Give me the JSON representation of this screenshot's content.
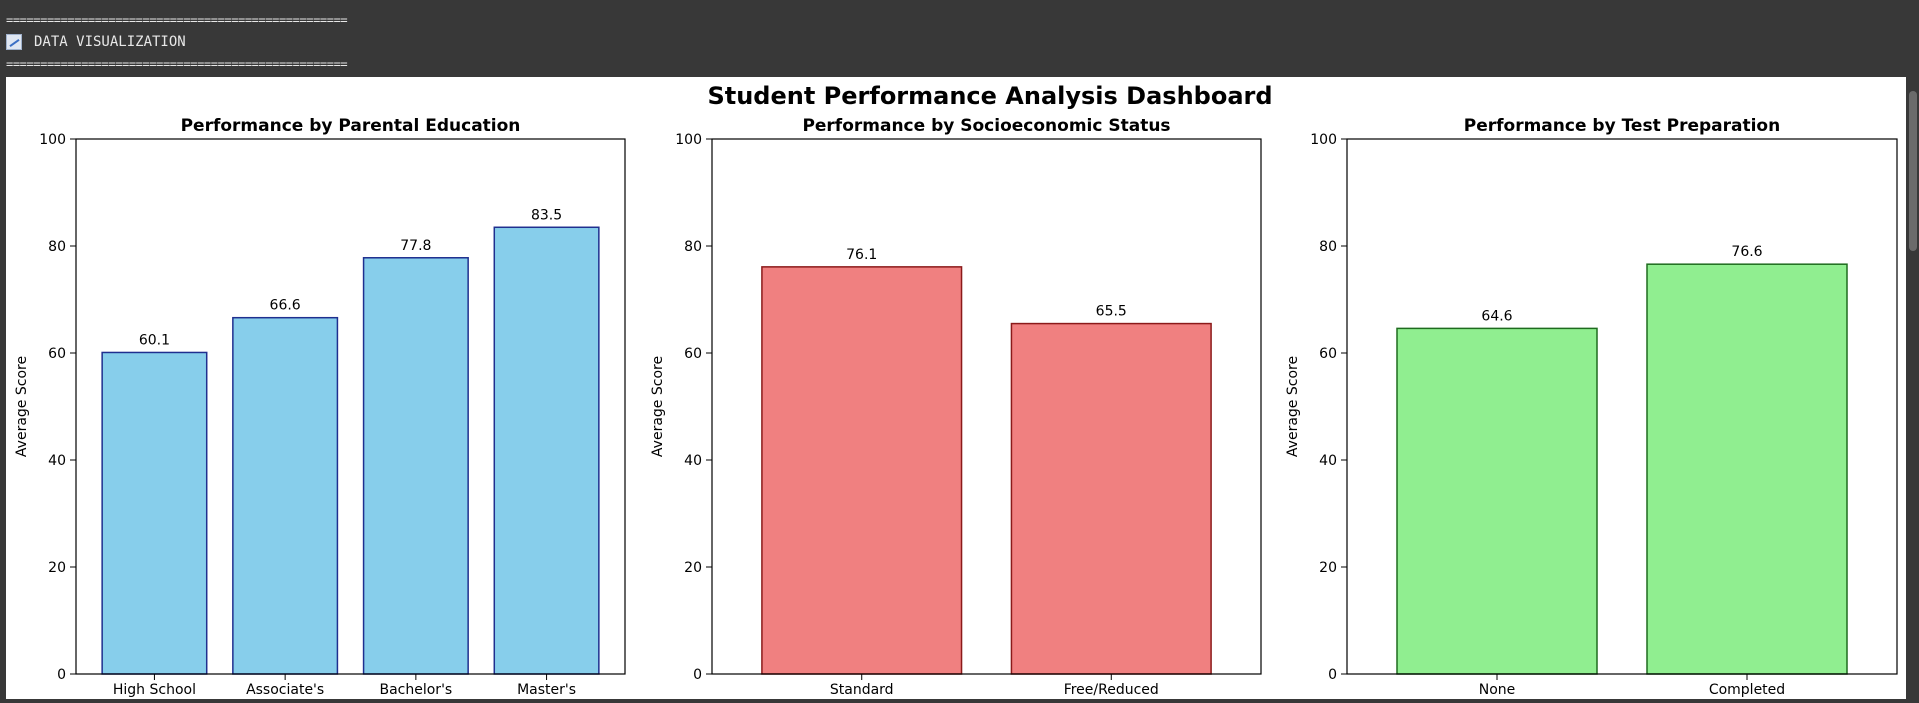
{
  "console": {
    "separator": "==================================================",
    "icon": "chart-icon",
    "title": "DATA VISUALIZATION"
  },
  "figure": {
    "suptitle": "Student Performance Analysis Dashboard"
  },
  "chart_data": [
    {
      "type": "bar",
      "title": "Performance by Parental Education",
      "ylabel": "Average Score",
      "xlabel": "",
      "categories": [
        "High School",
        "Associate's",
        "Bachelor's",
        "Master's"
      ],
      "values": [
        60.1,
        66.6,
        77.8,
        83.5
      ],
      "value_labels": [
        "60.1",
        "66.6",
        "77.8",
        "83.5"
      ],
      "ylim": [
        0,
        100
      ],
      "yticks": [
        "0",
        "20",
        "40",
        "60",
        "80",
        "100"
      ],
      "bar_color": "#87ceeb",
      "edge_color": "#1f2f8f",
      "grid": false
    },
    {
      "type": "bar",
      "title": "Performance by Socioeconomic Status",
      "ylabel": "Average Score",
      "xlabel": "",
      "categories": [
        "Standard",
        "Free/Reduced"
      ],
      "values": [
        76.1,
        65.5
      ],
      "value_labels": [
        "76.1",
        "65.5"
      ],
      "ylim": [
        0,
        100
      ],
      "yticks": [
        "0",
        "20",
        "40",
        "60",
        "80",
        "100"
      ],
      "bar_color": "#f08080",
      "edge_color": "#8b1a1a",
      "grid": false
    },
    {
      "type": "bar",
      "title": "Performance by Test Preparation",
      "ylabel": "Average Score",
      "xlabel": "",
      "categories": [
        "None",
        "Completed"
      ],
      "values": [
        64.6,
        76.6
      ],
      "value_labels": [
        "64.6",
        "76.6"
      ],
      "ylim": [
        0,
        100
      ],
      "yticks": [
        "0",
        "20",
        "40",
        "60",
        "80",
        "100"
      ],
      "bar_color": "#90ee90",
      "edge_color": "#1e6b1e",
      "grid": false
    }
  ]
}
